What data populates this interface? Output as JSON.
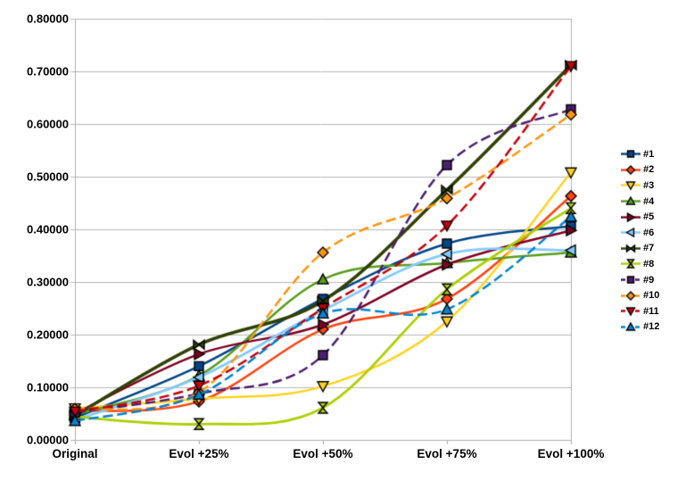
{
  "chart_data": {
    "type": "line",
    "title": "",
    "xlabel": "",
    "ylabel": "",
    "categories": [
      "Original",
      "Evol +25%",
      "Evol +50%",
      "Evol +75%",
      "Evol +100%"
    ],
    "y_tick_labels": [
      "0.00000",
      "0.10000",
      "0.20000",
      "0.30000",
      "0.40000",
      "0.50000",
      "0.60000",
      "0.70000",
      "0.80000"
    ],
    "ylim": [
      0.0,
      0.8
    ],
    "y_tick_step": 0.1,
    "grid": "horizontal",
    "smooth_lines": true,
    "legend_position": "right",
    "background_color": "#ffffff",
    "gridline_color": "#b8b8b8",
    "axis_color": "#b0b0b0",
    "text_color": "#000000",
    "series": [
      {
        "name": "#1",
        "color": "#004586",
        "marker": "square",
        "line_style": "solid",
        "line_width": 2.5,
        "values": [
          0.042,
          0.14,
          0.268,
          0.373,
          0.406
        ]
      },
      {
        "name": "#2",
        "color": "#FF420E",
        "marker": "diamond",
        "line_style": "solid",
        "line_width": 2.5,
        "values": [
          0.055,
          0.073,
          0.21,
          0.268,
          0.463
        ]
      },
      {
        "name": "#3",
        "color": "#FFD320",
        "marker": "triangle-down",
        "line_style": "solid",
        "line_width": 2.5,
        "values": [
          0.06,
          0.078,
          0.102,
          0.225,
          0.508
        ]
      },
      {
        "name": "#4",
        "color": "#579D1C",
        "marker": "triangle-up",
        "line_style": "solid",
        "line_width": 2.5,
        "values": [
          0.048,
          0.122,
          0.305,
          0.336,
          0.356
        ]
      },
      {
        "name": "#5",
        "color": "#7E0021",
        "marker": "triangle-right",
        "line_style": "solid",
        "line_width": 2.5,
        "values": [
          0.05,
          0.163,
          0.219,
          0.333,
          0.398
        ]
      },
      {
        "name": "#6",
        "color": "#83CAFF",
        "marker": "triangle-left",
        "line_style": "solid",
        "line_width": 2.8,
        "values": [
          0.038,
          0.119,
          0.246,
          0.353,
          0.36
        ]
      },
      {
        "name": "#7",
        "color": "#314004",
        "marker": "bowtie-horizontal",
        "line_style": "solid",
        "line_width": 3.6,
        "values": [
          0.046,
          0.181,
          0.264,
          0.475,
          0.712
        ]
      },
      {
        "name": "#8",
        "color": "#AECF00",
        "marker": "bowtie-vertical",
        "line_style": "solid",
        "line_width": 2.8,
        "values": [
          0.044,
          0.03,
          0.061,
          0.286,
          0.44
        ]
      },
      {
        "name": "#9",
        "color": "#4B1F6F",
        "marker": "square",
        "line_style": "dashed",
        "line_width": 2.5,
        "values": [
          0.052,
          0.088,
          0.161,
          0.522,
          0.628
        ]
      },
      {
        "name": "#10",
        "color": "#FF950E",
        "marker": "diamond",
        "line_style": "dashed",
        "line_width": 2.5,
        "values": [
          0.059,
          0.09,
          0.356,
          0.459,
          0.618
        ]
      },
      {
        "name": "#11",
        "color": "#C5000B",
        "marker": "triangle-down",
        "line_style": "dashed",
        "line_width": 2.5,
        "values": [
          0.054,
          0.103,
          0.25,
          0.407,
          0.71
        ]
      },
      {
        "name": "#12",
        "color": "#0084D1",
        "marker": "triangle-up",
        "line_style": "dashed",
        "line_width": 2.5,
        "values": [
          0.036,
          0.086,
          0.24,
          0.248,
          0.424
        ]
      }
    ]
  }
}
